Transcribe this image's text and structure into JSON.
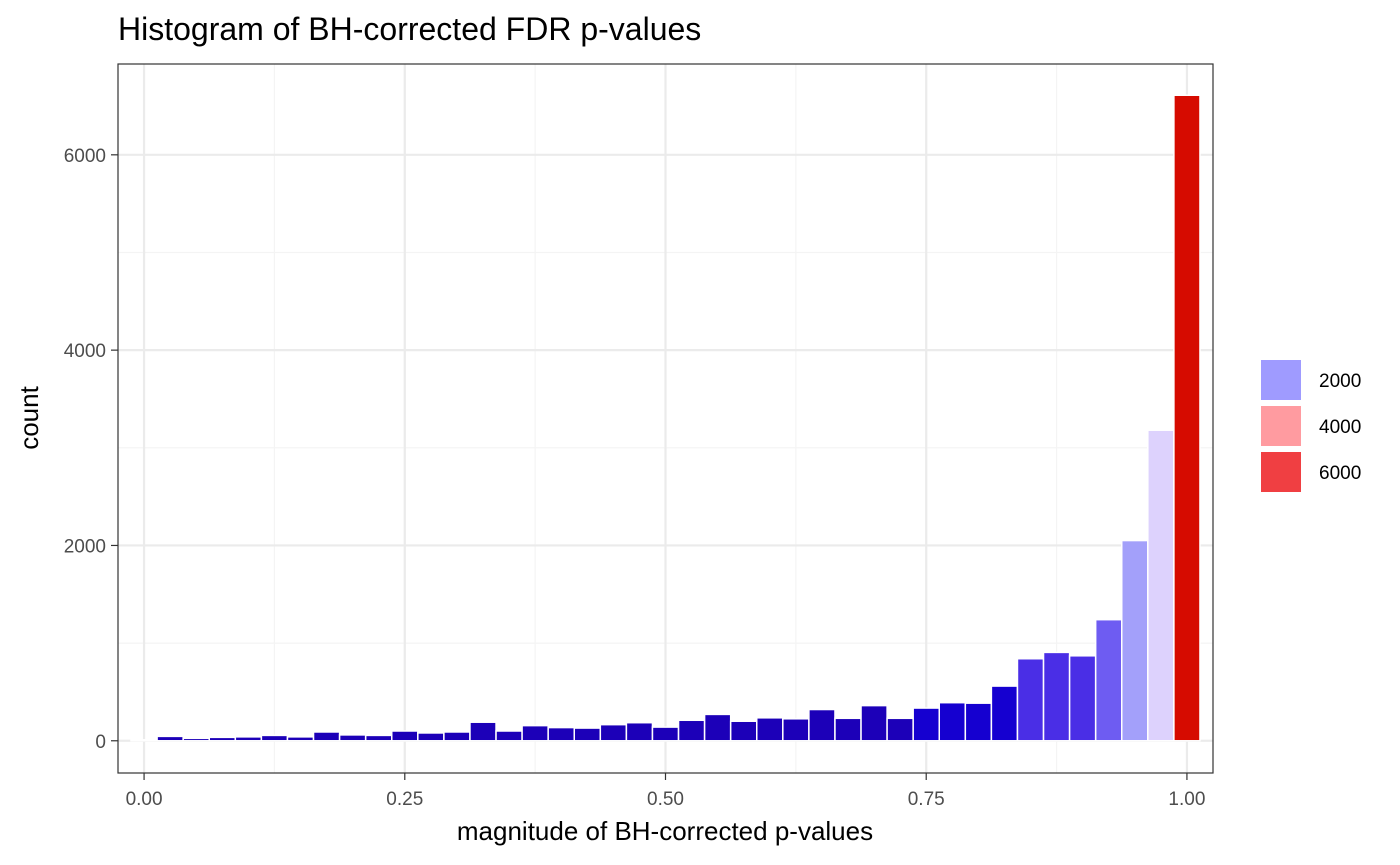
{
  "chart_data": {
    "type": "bar",
    "title": "Histogram of BH-corrected FDR p-values",
    "xlabel": "magnitude of BH-corrected p-values",
    "ylabel": "count",
    "xlim": [
      -0.025,
      1.025
    ],
    "ylim": [
      -330,
      6930
    ],
    "x_ticks": [
      0.0,
      0.25,
      0.5,
      0.75,
      1.0
    ],
    "x_tick_labels": [
      "0.00",
      "0.25",
      "0.50",
      "0.75",
      "1.00"
    ],
    "y_ticks": [
      0,
      2000,
      4000,
      6000
    ],
    "y_tick_labels": [
      "0",
      "2000",
      "4000",
      "6000"
    ],
    "grid": true,
    "bin_width": 0.025,
    "x": [
      0.0,
      0.025,
      0.05,
      0.075,
      0.1,
      0.125,
      0.15,
      0.175,
      0.2,
      0.225,
      0.25,
      0.275,
      0.3,
      0.325,
      0.35,
      0.375,
      0.4,
      0.425,
      0.45,
      0.475,
      0.5,
      0.525,
      0.55,
      0.575,
      0.6,
      0.625,
      0.65,
      0.675,
      0.7,
      0.725,
      0.75,
      0.775,
      0.8,
      0.825,
      0.85,
      0.875,
      0.9,
      0.925,
      0.95,
      0.975,
      1.0
    ],
    "values": [
      10,
      45,
      25,
      35,
      40,
      55,
      40,
      90,
      60,
      55,
      100,
      80,
      90,
      190,
      100,
      155,
      135,
      130,
      165,
      185,
      140,
      210,
      270,
      200,
      235,
      225,
      320,
      230,
      360,
      230,
      335,
      390,
      385,
      560,
      840,
      905,
      870,
      1240,
      2050,
      3180,
      6610
    ],
    "colors": [
      "#ffffff",
      "#1c00b8",
      "#1c00b8",
      "#1c00b8",
      "#1c00b8",
      "#1c00b8",
      "#1c00b8",
      "#1c00b8",
      "#1c00b8",
      "#1c00b8",
      "#1c00b8",
      "#1c00b8",
      "#1c00b8",
      "#1c00b8",
      "#1c00b8",
      "#1c00b8",
      "#1c00b8",
      "#1c00b8",
      "#1c00b8",
      "#1c00b8",
      "#1c00b8",
      "#1c00b8",
      "#1c00b8",
      "#1c00b8",
      "#1c00b8",
      "#1c00b8",
      "#1c00b8",
      "#1c00b8",
      "#1c00b8",
      "#1c00b8",
      "#1500d0",
      "#1500d0",
      "#1500d0",
      "#1500d0",
      "#4a2ee6",
      "#4a2ee6",
      "#4a2ee6",
      "#6e5cf2",
      "#a3a0fa",
      "#ddd2fd",
      "#d60b00"
    ],
    "legend": {
      "placement": "right",
      "entries": [
        {
          "label": "2000",
          "color": "#9f9bff"
        },
        {
          "label": "4000",
          "color": "#ff9ba0"
        },
        {
          "label": "6000",
          "color": "#f03f42"
        }
      ]
    },
    "panel_border_color": "#333333",
    "grid_major_color": "#ebebeb",
    "grid_minor_color": "#f4f4f4"
  }
}
